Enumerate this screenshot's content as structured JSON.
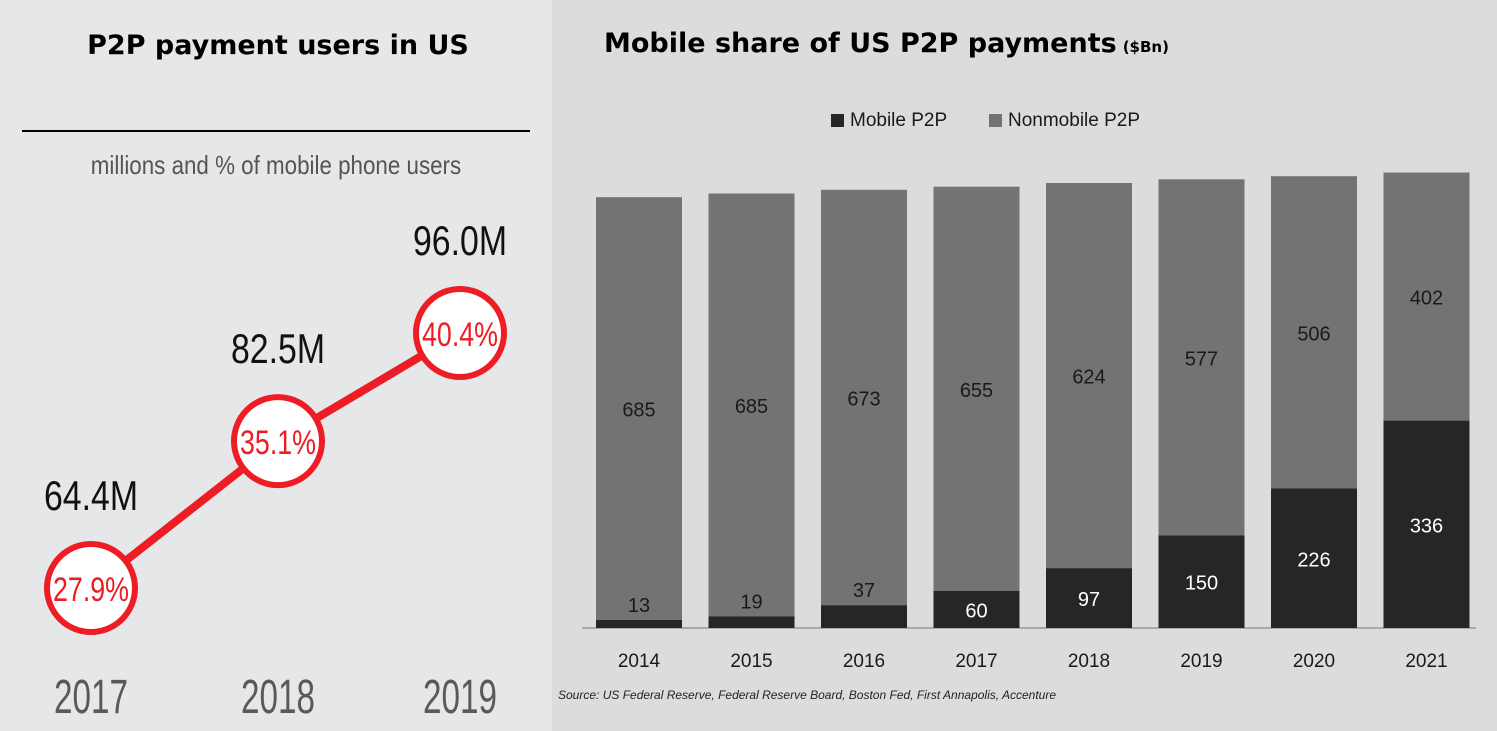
{
  "chart_data": [
    {
      "type": "line",
      "title": "P2P payment users in US",
      "subtitle": "millions and % of mobile phone users",
      "categories": [
        "2017",
        "2018",
        "2019"
      ],
      "users": [
        "64.4M",
        "82.5M",
        "96.0M"
      ],
      "share_labels": [
        "27.9%",
        "35.1%",
        "40.4%"
      ],
      "values": [
        27.9,
        35.1,
        40.4
      ],
      "colors": {
        "line": "#ee1c24",
        "text": "#111111",
        "year": "#58595b"
      }
    },
    {
      "type": "bar",
      "stacked": true,
      "title": "Mobile share of US P2P payments",
      "title_unit": "($Bn)",
      "categories": [
        "2014",
        "2015",
        "2016",
        "2017",
        "2018",
        "2019",
        "2020",
        "2021"
      ],
      "series": [
        {
          "name": "Mobile P2P",
          "values": [
            13,
            19,
            37,
            60,
            97,
            150,
            226,
            336
          ],
          "color": "#262626"
        },
        {
          "name": "Nonmobile P2P",
          "values": [
            685,
            685,
            673,
            655,
            624,
            577,
            506,
            402
          ],
          "color": "#737373"
        }
      ],
      "legend": "top",
      "source": "Source: US Federal Reserve, Federal Reserve Board, Boston Fed, First Annapolis, Accenture"
    }
  ]
}
